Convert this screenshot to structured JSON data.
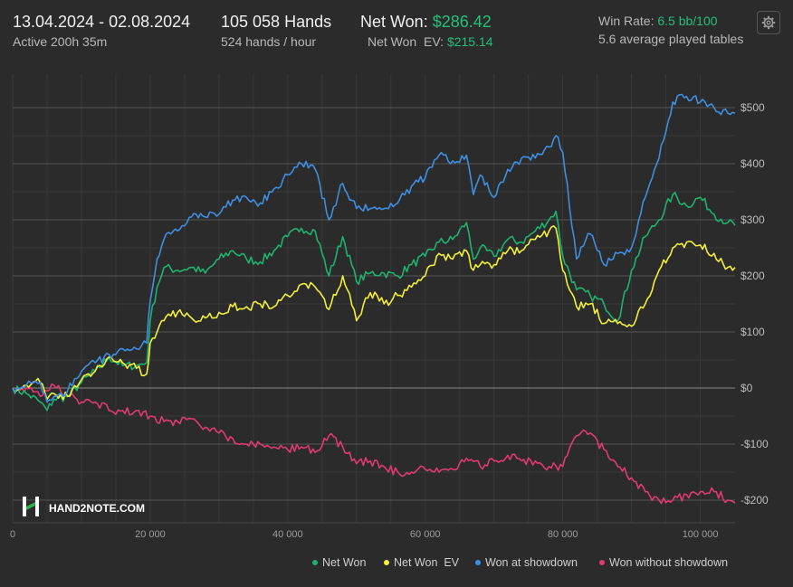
{
  "header": {
    "date_range": "13.04.2024 - 02.08.2024",
    "active_time": "Active 200h 35m",
    "hands": "105 058 Hands",
    "hands_per_hour": "524 hands / hour",
    "net_won_label": "Net Won:",
    "net_won_value": "$286.42",
    "net_won_ev_label": "Net Won  EV:",
    "net_won_ev_value": "$215.14",
    "win_rate_label": "Win Rate:",
    "win_rate_value": "6.5 bb/100",
    "avg_tables": "5.6 average played tables"
  },
  "watermark": "HAND2NOTE.COM",
  "icons": {
    "settings": "gear-icon",
    "logo": "hand2note-logo-icon"
  },
  "colors": {
    "background": "#2b2b2b",
    "grid": "#3a3a3a",
    "zero_line": "#8a8a8a",
    "net_won": "#1db36f",
    "net_won_ev": "#f2ef3c",
    "showdown": "#3f8fe0",
    "non_showdown": "#e03a72",
    "accent_green": "#22c07a"
  },
  "chart_data": {
    "type": "line",
    "x_ticks": [
      0,
      20000,
      40000,
      60000,
      80000,
      100000
    ],
    "x_tick_labels": [
      "0",
      "20 000",
      "40 000",
      "60 000",
      "80 000",
      "100 000"
    ],
    "y_ticks": [
      -200,
      -100,
      0,
      100,
      200,
      300,
      400,
      500
    ],
    "y_tick_labels": [
      "-$200",
      "-$100",
      "$0",
      "$100",
      "$200",
      "$300",
      "$400",
      "$500"
    ],
    "xlim": [
      0,
      105058
    ],
    "ylim": [
      -240,
      540
    ],
    "grid": true,
    "legend_position": "bottom-right",
    "series": [
      {
        "name": "Net Won",
        "color": "#1db36f",
        "x": [
          0,
          2000,
          4000,
          5000,
          6000,
          8000,
          10000,
          12000,
          14000,
          16000,
          18000,
          19500,
          20000,
          21000,
          22000,
          24000,
          26000,
          28000,
          30000,
          32000,
          34000,
          36000,
          38000,
          40000,
          42000,
          44000,
          46000,
          48000,
          50000,
          52000,
          54000,
          56000,
          58000,
          60000,
          62000,
          64000,
          66000,
          67000,
          68000,
          70000,
          72000,
          74000,
          76000,
          78000,
          79000,
          80000,
          82000,
          84000,
          86000,
          88000,
          90000,
          92000,
          94000,
          96000,
          98000,
          100000,
          102000,
          104000,
          105058
        ],
        "y": [
          0,
          -10,
          -25,
          -40,
          -20,
          -15,
          10,
          30,
          55,
          40,
          40,
          45,
          120,
          180,
          215,
          210,
          215,
          205,
          230,
          245,
          230,
          225,
          245,
          270,
          285,
          280,
          200,
          270,
          190,
          205,
          205,
          200,
          220,
          235,
          260,
          265,
          295,
          230,
          250,
          235,
          265,
          260,
          280,
          300,
          315,
          235,
          175,
          165,
          150,
          120,
          210,
          270,
          300,
          345,
          325,
          340,
          310,
          295,
          290
        ]
      },
      {
        "name": "Net Won  EV",
        "color": "#f2ef3c",
        "x": [
          0,
          2000,
          4000,
          5000,
          6000,
          8000,
          10000,
          12000,
          14000,
          16000,
          18000,
          19500,
          20000,
          21000,
          22000,
          24000,
          26000,
          28000,
          30000,
          32000,
          34000,
          36000,
          38000,
          40000,
          42000,
          44000,
          46000,
          48000,
          50000,
          52000,
          54000,
          56000,
          58000,
          60000,
          62000,
          64000,
          66000,
          67000,
          68000,
          70000,
          72000,
          74000,
          76000,
          78000,
          79000,
          80000,
          82000,
          84000,
          86000,
          88000,
          90000,
          92000,
          94000,
          96000,
          98000,
          100000,
          102000,
          104000,
          105058
        ],
        "y": [
          0,
          5,
          10,
          -20,
          -10,
          -15,
          15,
          30,
          55,
          45,
          35,
          25,
          80,
          100,
          120,
          135,
          125,
          125,
          135,
          145,
          145,
          150,
          145,
          165,
          185,
          180,
          140,
          200,
          120,
          170,
          150,
          165,
          180,
          200,
          240,
          230,
          245,
          210,
          220,
          220,
          245,
          245,
          265,
          280,
          285,
          210,
          145,
          150,
          115,
          115,
          110,
          150,
          210,
          250,
          260,
          255,
          240,
          215,
          215
        ]
      },
      {
        "name": "Won at showdown",
        "color": "#3f8fe0",
        "x": [
          0,
          2000,
          4000,
          5000,
          6000,
          8000,
          10000,
          12000,
          14000,
          16000,
          18000,
          19500,
          20000,
          21000,
          22000,
          24000,
          26000,
          28000,
          30000,
          32000,
          34000,
          36000,
          38000,
          40000,
          42000,
          44000,
          46000,
          48000,
          50000,
          52000,
          54000,
          56000,
          58000,
          60000,
          62000,
          64000,
          66000,
          67000,
          68000,
          70000,
          72000,
          74000,
          76000,
          78000,
          79000,
          80000,
          82000,
          84000,
          86000,
          88000,
          90000,
          92000,
          94000,
          96000,
          98000,
          100000,
          102000,
          104000,
          105058
        ],
        "y": [
          0,
          5,
          10,
          -25,
          -15,
          -5,
          30,
          45,
          60,
          70,
          70,
          80,
          155,
          230,
          265,
          280,
          305,
          305,
          310,
          335,
          340,
          330,
          355,
          380,
          400,
          390,
          300,
          365,
          320,
          320,
          320,
          330,
          360,
          375,
          415,
          405,
          415,
          345,
          380,
          340,
          390,
          410,
          410,
          430,
          450,
          420,
          230,
          275,
          220,
          240,
          250,
          340,
          410,
          510,
          520,
          510,
          500,
          490,
          490
        ]
      },
      {
        "name": "Won without showdown",
        "color": "#e03a72",
        "x": [
          0,
          2000,
          4000,
          5000,
          6000,
          8000,
          10000,
          12000,
          14000,
          16000,
          18000,
          20000,
          22000,
          24000,
          26000,
          28000,
          30000,
          32000,
          34000,
          36000,
          38000,
          40000,
          42000,
          44000,
          46000,
          48000,
          50000,
          52000,
          54000,
          56000,
          58000,
          60000,
          62000,
          64000,
          66000,
          68000,
          70000,
          72000,
          74000,
          76000,
          78000,
          80000,
          82000,
          84000,
          86000,
          88000,
          90000,
          92000,
          94000,
          96000,
          98000,
          100000,
          102000,
          104000,
          105058
        ],
        "y": [
          0,
          0,
          -15,
          -5,
          5,
          -15,
          -25,
          -25,
          -40,
          -40,
          -40,
          -50,
          -60,
          -60,
          -55,
          -70,
          -80,
          -90,
          -100,
          -100,
          -105,
          -110,
          -105,
          -115,
          -85,
          -105,
          -135,
          -130,
          -140,
          -150,
          -150,
          -145,
          -150,
          -145,
          -125,
          -140,
          -130,
          -120,
          -130,
          -130,
          -140,
          -140,
          -85,
          -80,
          -110,
          -140,
          -160,
          -185,
          -200,
          -200,
          -190,
          -185,
          -185,
          -200,
          -205
        ]
      }
    ]
  }
}
